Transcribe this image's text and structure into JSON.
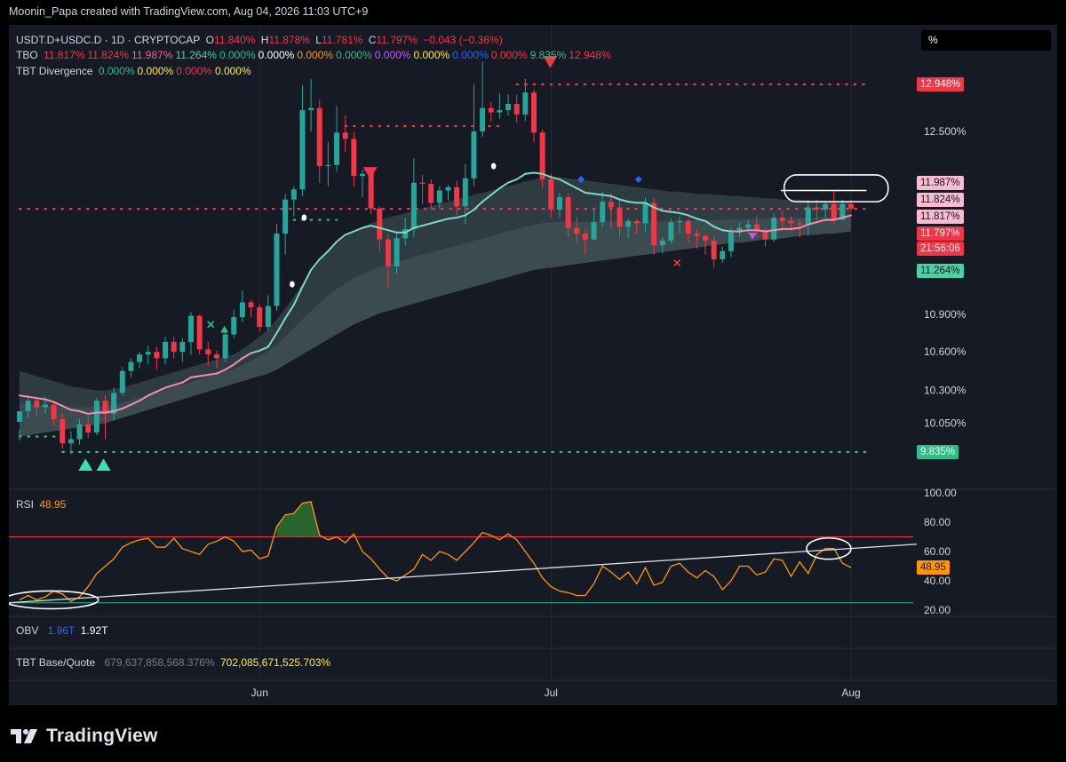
{
  "caption": "Moonin_Papa created with TradingView.com, Aug 04, 2026 11:03 UTC+9",
  "footer": {
    "brand": "TradingView"
  },
  "scale_box": "%",
  "legend_main": {
    "symbol": "USDT.D+USDC.D · 1D · CRYPTOCAP",
    "o_label": "O",
    "o": "11.840%",
    "h_label": "H",
    "h": "11.878%",
    "l_label": "L",
    "l": "11.781%",
    "c_label": "C",
    "c": "11.797%",
    "chg": "−0.043 (−0.36%)"
  },
  "legend_tbo": {
    "name": "TBO",
    "values": [
      "11.817%",
      "11.824%",
      "11.987%",
      "11.264%",
      "0.000%",
      "0.000%",
      "0.000%",
      "0.000%",
      "0.000%",
      "0.000%",
      "0.000%",
      "0.000%",
      "9.835%",
      "12.948%"
    ],
    "colors": [
      "#f23645",
      "#f23645",
      "#f06292",
      "#4dd0a6",
      "#2ebd85",
      "#ffffff",
      "#ff9800",
      "#2ebd85",
      "#c657f5",
      "#ffeb3b",
      "#2962ff",
      "#f23645",
      "#2ebd85",
      "#f23645"
    ]
  },
  "legend_div": {
    "name": "TBT Divergence",
    "values": [
      "0.000%",
      "0.000%",
      "0.000%",
      "0.000%"
    ],
    "colors": [
      "#2ebd85",
      "#ffeb3b",
      "#f23645",
      "#ffeb3b"
    ]
  },
  "legend_rsi": {
    "name": "RSI",
    "value": "48.95"
  },
  "legend_obv": {
    "name": "OBV",
    "v1": "1.96T",
    "v2": "1.92T"
  },
  "legend_base": {
    "name": "TBT Base/Quote",
    "v1": "679,637,858,568.376%",
    "v2": "702,085,671,525.703%"
  },
  "price_tags": [
    {
      "label": "12.948%",
      "bg": "#f23645",
      "fg": "#ffffff",
      "value": 12.948
    },
    {
      "label": "11.987%",
      "bg": "#f8bbd0",
      "fg": "#131722",
      "value": 12.03
    },
    {
      "label": "11.824%",
      "bg": "#f8bbd0",
      "fg": "#131722",
      "value": 11.88
    },
    {
      "label": "11.817%",
      "bg": "#f8bbd0",
      "fg": "#131722",
      "value": 11.73
    },
    {
      "label": "11.797%",
      "bg": "#f23645",
      "fg": "#ffffff",
      "value": 11.58
    },
    {
      "label": "21:56:06",
      "bg": "#f23645",
      "fg": "#ffffff",
      "value": 11.45
    },
    {
      "label": "11.264%",
      "bg": "#4dd0a6",
      "fg": "#131722",
      "value": 11.264
    },
    {
      "label": "9.835%",
      "bg": "#2ebd85",
      "fg": "#ffffff",
      "value": 9.835
    }
  ],
  "rsi_tag": {
    "label": "48.95",
    "bg": "#ff9800",
    "fg": "#131722",
    "value": 48.95
  },
  "chart_data": {
    "type": "candlestick",
    "price_axis": {
      "ticks": [
        "12.500%",
        "10.900%",
        "10.600%",
        "10.300%",
        "10.050%"
      ],
      "tick_values": [
        12.5,
        10.9,
        10.6,
        10.3,
        10.05
      ],
      "scale": "log"
    },
    "time_axis": {
      "ticks": [
        "Jun",
        "Jul",
        "Aug"
      ],
      "tick_index": [
        28,
        62,
        97
      ]
    },
    "candles": [
      [
        10.06,
        10.14,
        10.0,
        9.92
      ],
      [
        10.14,
        10.22,
        10.24,
        10.09
      ],
      [
        10.22,
        10.17,
        10.23,
        10.1
      ],
      [
        10.17,
        10.19,
        10.25,
        10.12
      ],
      [
        10.19,
        10.08,
        10.21,
        10.03
      ],
      [
        10.08,
        9.9,
        10.12,
        9.86
      ],
      [
        9.9,
        9.93,
        9.99,
        9.82
      ],
      [
        9.93,
        10.04,
        10.08,
        9.89
      ],
      [
        10.04,
        9.98,
        10.1,
        9.94
      ],
      [
        9.98,
        10.22,
        10.24,
        9.96
      ],
      [
        10.22,
        10.12,
        10.26,
        9.93
      ],
      [
        10.12,
        10.28,
        10.32,
        10.07
      ],
      [
        10.28,
        10.45,
        10.48,
        10.26
      ],
      [
        10.45,
        10.52,
        10.55,
        10.4
      ],
      [
        10.52,
        10.58,
        10.6,
        10.47
      ],
      [
        10.58,
        10.6,
        10.65,
        10.5
      ],
      [
        10.6,
        10.55,
        10.64,
        10.46
      ],
      [
        10.55,
        10.68,
        10.72,
        10.5
      ],
      [
        10.68,
        10.6,
        10.72,
        10.55
      ],
      [
        10.6,
        10.68,
        10.71,
        10.52
      ],
      [
        10.68,
        10.89,
        10.92,
        10.58
      ],
      [
        10.89,
        10.62,
        10.9,
        10.58
      ],
      [
        10.62,
        10.58,
        10.68,
        10.49
      ],
      [
        10.58,
        10.55,
        10.61,
        10.47
      ],
      [
        10.55,
        10.74,
        10.79,
        10.52
      ],
      [
        10.74,
        10.88,
        10.94,
        10.71
      ],
      [
        10.88,
        11.0,
        11.1,
        10.84
      ],
      [
        11.0,
        10.96,
        11.02,
        10.88
      ],
      [
        10.96,
        10.8,
        10.99,
        10.76
      ],
      [
        10.8,
        10.97,
        11.06,
        10.77
      ],
      [
        10.97,
        11.58,
        11.66,
        10.93
      ],
      [
        11.58,
        11.88,
        11.93,
        11.4
      ],
      [
        11.88,
        11.97,
        12.0,
        11.73
      ],
      [
        11.97,
        12.7,
        12.94,
        11.91
      ],
      [
        12.7,
        12.72,
        13.0,
        12.5
      ],
      [
        12.72,
        12.18,
        12.8,
        12.03
      ],
      [
        12.18,
        12.19,
        12.4,
        12.0
      ],
      [
        12.19,
        12.49,
        12.74,
        12.13
      ],
      [
        12.49,
        12.43,
        12.65,
        12.31
      ],
      [
        12.43,
        12.09,
        12.5,
        12.0
      ],
      [
        12.09,
        12.11,
        12.15,
        11.9
      ],
      [
        12.11,
        11.8,
        12.13,
        11.75
      ],
      [
        11.8,
        11.53,
        11.82,
        11.43
      ],
      [
        11.53,
        11.3,
        11.58,
        11.12
      ],
      [
        11.3,
        11.54,
        11.6,
        11.24
      ],
      [
        11.54,
        11.62,
        11.72,
        11.48
      ],
      [
        11.62,
        12.03,
        12.25,
        11.55
      ],
      [
        12.03,
        12.02,
        12.1,
        11.84
      ],
      [
        12.02,
        11.85,
        12.06,
        11.79
      ],
      [
        11.85,
        11.96,
        12.0,
        11.8
      ],
      [
        11.96,
        11.99,
        12.01,
        11.87
      ],
      [
        11.99,
        11.82,
        12.05,
        11.74
      ],
      [
        11.82,
        12.07,
        12.2,
        11.66
      ],
      [
        12.07,
        12.5,
        12.95,
        12.0
      ],
      [
        12.5,
        12.72,
        13.17,
        12.45
      ],
      [
        12.72,
        12.68,
        12.78,
        12.59
      ],
      [
        12.68,
        12.7,
        12.86,
        12.62
      ],
      [
        12.7,
        12.76,
        12.85,
        12.65
      ],
      [
        12.76,
        12.66,
        12.85,
        12.58
      ],
      [
        12.66,
        12.87,
        13.0,
        12.6
      ],
      [
        12.87,
        12.49,
        12.9,
        12.4
      ],
      [
        12.49,
        12.06,
        12.52,
        11.98
      ],
      [
        12.06,
        11.79,
        12.11,
        11.72
      ],
      [
        11.79,
        11.9,
        11.94,
        11.72
      ],
      [
        11.9,
        11.63,
        11.93,
        11.55
      ],
      [
        11.63,
        11.58,
        11.72,
        11.5
      ],
      [
        11.58,
        11.53,
        11.62,
        11.4
      ],
      [
        11.53,
        11.68,
        11.79,
        11.52
      ],
      [
        11.68,
        11.86,
        11.95,
        11.64
      ],
      [
        11.86,
        11.81,
        11.93,
        11.62
      ],
      [
        11.81,
        11.64,
        11.88,
        11.55
      ],
      [
        11.64,
        11.69,
        11.71,
        11.54
      ],
      [
        11.69,
        11.67,
        11.71,
        11.58
      ],
      [
        11.67,
        11.85,
        11.9,
        11.6
      ],
      [
        11.85,
        11.48,
        11.89,
        11.4
      ],
      [
        11.48,
        11.52,
        11.55,
        11.41
      ],
      [
        11.52,
        11.68,
        11.71,
        11.49
      ],
      [
        11.68,
        11.69,
        11.73,
        11.58
      ],
      [
        11.69,
        11.58,
        11.71,
        11.5
      ],
      [
        11.58,
        11.56,
        11.62,
        11.45
      ],
      [
        11.56,
        11.52,
        11.57,
        11.4
      ],
      [
        11.52,
        11.36,
        11.56,
        11.29
      ],
      [
        11.36,
        11.43,
        11.47,
        11.33
      ],
      [
        11.43,
        11.59,
        11.63,
        11.38
      ],
      [
        11.59,
        11.63,
        11.68,
        11.55
      ],
      [
        11.63,
        11.66,
        11.7,
        11.58
      ],
      [
        11.66,
        11.6,
        11.74,
        11.55
      ],
      [
        11.6,
        11.53,
        11.63,
        11.47
      ],
      [
        11.53,
        11.72,
        11.76,
        11.51
      ],
      [
        11.72,
        11.69,
        11.78,
        11.62
      ],
      [
        11.69,
        11.67,
        11.73,
        11.6
      ],
      [
        11.67,
        11.66,
        11.7,
        11.55
      ],
      [
        11.66,
        11.81,
        11.88,
        11.56
      ],
      [
        11.81,
        11.79,
        11.88,
        11.7
      ],
      [
        11.79,
        11.84,
        11.86,
        11.72
      ],
      [
        11.84,
        11.7,
        11.96,
        11.66
      ],
      [
        11.7,
        11.84,
        11.88,
        11.78
      ],
      [
        11.84,
        11.8,
        11.88,
        11.78
      ]
    ],
    "tbo_fast": [
      10.26,
      10.25,
      10.24,
      10.23,
      10.21,
      10.18,
      10.15,
      10.14,
      10.12,
      10.13,
      10.13,
      10.14,
      10.16,
      10.19,
      10.22,
      10.26,
      10.29,
      10.32,
      10.34,
      10.36,
      10.4,
      10.41,
      10.42,
      10.43,
      10.46,
      10.5,
      10.55,
      10.59,
      10.61,
      10.64,
      10.75,
      10.87,
      10.98,
      11.13,
      11.27,
      11.36,
      11.43,
      11.51,
      11.57,
      11.6,
      11.63,
      11.65,
      11.63,
      11.61,
      11.59,
      11.59,
      11.63,
      11.65,
      11.67,
      11.69,
      11.71,
      11.72,
      11.74,
      11.79,
      11.86,
      11.92,
      11.98,
      12.03,
      12.06,
      12.11,
      12.12,
      12.11,
      12.08,
      12.06,
      12.02,
      11.98,
      11.94,
      11.93,
      11.92,
      11.91,
      11.88,
      11.86,
      11.85,
      11.85,
      11.81,
      11.78,
      11.77,
      11.76,
      11.74,
      11.71,
      11.69,
      11.64,
      11.61,
      11.6,
      11.6,
      11.61,
      11.61,
      11.6,
      11.61,
      11.62,
      11.62,
      11.63,
      11.66,
      11.68,
      11.7,
      11.7,
      11.72,
      11.74
    ],
    "cloud_lower": [
      9.95,
      9.96,
      9.97,
      9.98,
      9.99,
      10.0,
      10.01,
      10.02,
      10.03,
      10.04,
      10.05,
      10.07,
      10.09,
      10.11,
      10.13,
      10.15,
      10.17,
      10.19,
      10.21,
      10.23,
      10.25,
      10.27,
      10.29,
      10.31,
      10.33,
      10.35,
      10.37,
      10.39,
      10.41,
      10.43,
      10.46,
      10.5,
      10.54,
      10.58,
      10.62,
      10.66,
      10.7,
      10.74,
      10.78,
      10.82,
      10.85,
      10.88,
      10.91,
      10.93,
      10.95,
      10.97,
      10.99,
      11.01,
      11.03,
      11.05,
      11.07,
      11.09,
      11.11,
      11.13,
      11.15,
      11.17,
      11.19,
      11.21,
      11.23,
      11.25,
      11.27,
      11.28,
      11.29,
      11.3,
      11.31,
      11.32,
      11.33,
      11.34,
      11.35,
      11.36,
      11.37,
      11.38,
      11.39,
      11.4,
      11.41,
      11.42,
      11.43,
      11.44,
      11.45,
      11.46,
      11.47,
      11.48,
      11.49,
      11.5,
      11.5,
      11.51,
      11.52,
      11.53,
      11.53,
      11.54,
      11.55,
      11.56,
      11.57,
      11.57,
      11.58,
      11.58,
      11.59,
      11.6
    ],
    "cloud_upper": [
      10.45,
      10.43,
      10.41,
      10.39,
      10.37,
      10.35,
      10.33,
      10.32,
      10.31,
      10.3,
      10.3,
      10.31,
      10.32,
      10.34,
      10.36,
      10.38,
      10.4,
      10.42,
      10.44,
      10.46,
      10.48,
      10.5,
      10.52,
      10.54,
      10.56,
      10.58,
      10.62,
      10.67,
      10.72,
      10.78,
      10.86,
      10.95,
      11.05,
      11.15,
      11.25,
      11.34,
      11.42,
      11.49,
      11.55,
      11.6,
      11.64,
      11.67,
      11.7,
      11.72,
      11.74,
      11.76,
      11.78,
      11.8,
      11.82,
      11.84,
      11.86,
      11.88,
      11.9,
      11.92,
      11.94,
      11.96,
      11.98,
      12.0,
      12.02,
      12.04,
      12.06,
      12.08,
      12.08,
      12.08,
      12.07,
      12.06,
      12.05,
      12.04,
      12.03,
      12.02,
      12.01,
      12.0,
      11.99,
      11.98,
      11.97,
      11.96,
      11.95,
      11.95,
      11.94,
      11.93,
      11.93,
      11.92,
      11.92,
      11.91,
      11.91,
      11.9,
      11.9,
      11.89,
      11.89,
      11.88,
      11.88,
      11.88,
      11.87,
      11.87,
      11.87,
      11.86,
      11.86,
      11.86
    ],
    "levels": [
      {
        "name": "top-resistance",
        "value": 12.948,
        "from": 58,
        "to": 99,
        "color": "#f23645"
      },
      {
        "name": "mid-resistance",
        "value": 12.55,
        "from": 38,
        "to": 56,
        "color": "#f23645"
      },
      {
        "name": "current-price",
        "value": 11.797,
        "from": 0,
        "to": 99,
        "color": "#f23645"
      },
      {
        "name": "mid-support",
        "value": 11.7,
        "from": 31,
        "to": 37,
        "color": "#2ebd85"
      },
      {
        "name": "bottom-support",
        "value": 9.835,
        "from": 5,
        "to": 99,
        "color": "#2ebd85"
      },
      {
        "name": "early-support",
        "value": 9.95,
        "from": 0,
        "to": 5,
        "color": "#2ebd85"
      }
    ],
    "rsi": {
      "range": [
        20,
        100
      ],
      "ticks": [
        "100.00",
        "80.00",
        "60.00",
        "40.00",
        "20.00"
      ],
      "tick_values": [
        100,
        80,
        60,
        40,
        20
      ],
      "overbought": 70,
      "oversold": 25,
      "values": [
        27,
        30,
        27,
        29,
        33,
        31,
        26,
        29,
        36,
        45,
        50,
        55,
        63,
        66,
        68,
        69,
        63,
        63,
        69,
        62,
        60,
        58,
        65,
        67,
        70,
        67,
        60,
        61,
        55,
        57,
        77,
        85,
        86,
        93,
        94,
        71,
        68,
        70,
        66,
        72,
        60,
        55,
        48,
        42,
        40,
        44,
        48,
        58,
        54,
        60,
        58,
        54,
        60,
        66,
        73,
        71,
        68,
        72,
        68,
        60,
        52,
        42,
        36,
        33,
        32,
        30,
        30,
        38,
        50,
        46,
        41,
        46,
        38,
        49,
        37,
        39,
        50,
        52,
        46,
        42,
        47,
        43,
        34,
        40,
        50,
        50,
        44,
        46,
        55,
        54,
        43,
        53,
        45,
        58,
        62,
        62,
        52,
        49
      ]
    },
    "trendlines": [
      {
        "pane": "rsi",
        "from": [
          0,
          25
        ],
        "to": [
          103,
          65
        ]
      }
    ]
  }
}
